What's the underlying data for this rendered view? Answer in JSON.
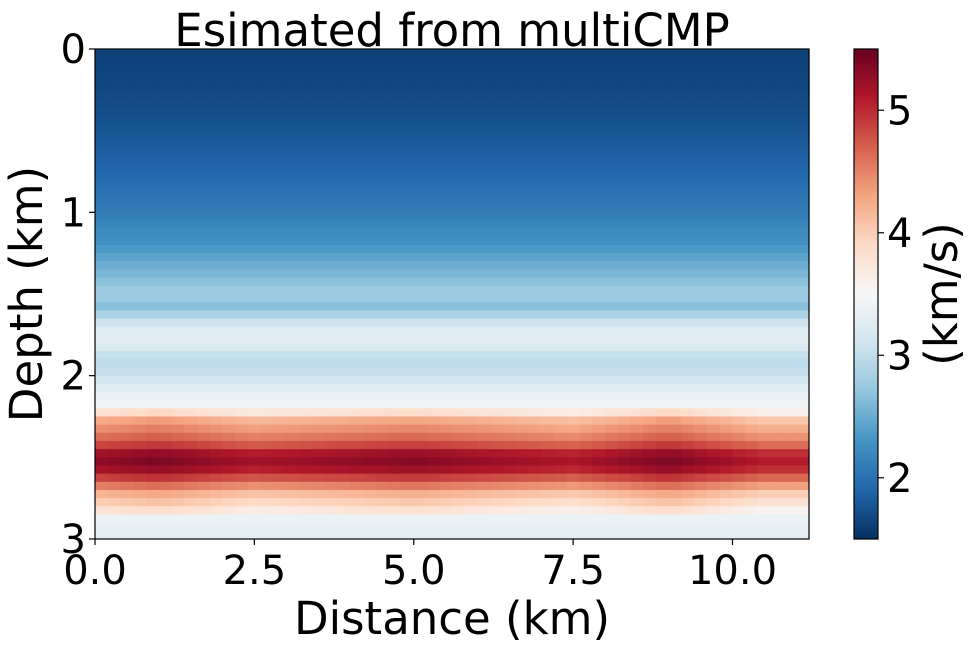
{
  "chart_data": {
    "type": "heatmap",
    "title": "Esimated from multiCMP",
    "xlabel": "Distance (km)",
    "ylabel": "Depth (km)",
    "xlim": [
      0,
      11.2
    ],
    "ylim": [
      3,
      0
    ],
    "xticks": [
      0.0,
      2.5,
      5.0,
      7.5,
      10.0
    ],
    "xtick_labels": [
      "0.0",
      "2.5",
      "5.0",
      "7.5",
      "10.0"
    ],
    "yticks": [
      0,
      1,
      2,
      3
    ],
    "ytick_labels": [
      "0",
      "1",
      "2",
      "3"
    ],
    "colorbar": {
      "label": "(km/s)",
      "range": [
        1.5,
        5.5
      ],
      "ticks": [
        2,
        3,
        4,
        5
      ],
      "tick_labels": [
        "2",
        "3",
        "4",
        "5"
      ],
      "colormap": "RdBu_r"
    },
    "grid": false,
    "cell_size_km": {
      "dx": 0.2,
      "dz": 0.05
    },
    "velocity_profile_km_s": [
      {
        "depth": 0.0,
        "v": 1.62
      },
      {
        "depth": 0.2,
        "v": 1.66
      },
      {
        "depth": 0.4,
        "v": 1.72
      },
      {
        "depth": 0.6,
        "v": 1.82
      },
      {
        "depth": 0.8,
        "v": 1.95
      },
      {
        "depth": 1.0,
        "v": 2.1
      },
      {
        "depth": 1.2,
        "v": 2.3
      },
      {
        "depth": 1.35,
        "v": 2.55
      },
      {
        "depth": 1.5,
        "v": 2.8
      },
      {
        "depth": 1.58,
        "v": 2.65
      },
      {
        "depth": 1.7,
        "v": 3.2
      },
      {
        "depth": 1.8,
        "v": 3.3
      },
      {
        "depth": 1.9,
        "v": 2.95
      },
      {
        "depth": 2.0,
        "v": 3.05
      },
      {
        "depth": 2.1,
        "v": 3.3
      },
      {
        "depth": 2.2,
        "v": 3.5
      },
      {
        "depth": 2.28,
        "v": 4.2
      },
      {
        "depth": 2.35,
        "v": 4.4
      },
      {
        "depth": 2.42,
        "v": 4.7
      },
      {
        "depth": 2.5,
        "v": 5.25
      },
      {
        "depth": 2.58,
        "v": 5.05
      },
      {
        "depth": 2.65,
        "v": 4.6
      },
      {
        "depth": 2.72,
        "v": 4.1
      },
      {
        "depth": 2.8,
        "v": 3.8
      },
      {
        "depth": 2.88,
        "v": 3.35
      },
      {
        "depth": 2.95,
        "v": 3.3
      },
      {
        "depth": 3.0,
        "v": 3.3
      }
    ],
    "lateral_adjustment_km_s": [
      {
        "x": 0.0,
        "dv": 0.1
      },
      {
        "x": 1.0,
        "dv": 0.2
      },
      {
        "x": 2.5,
        "dv": 0.0
      },
      {
        "x": 5.0,
        "dv": 0.15
      },
      {
        "x": 7.5,
        "dv": -0.05
      },
      {
        "x": 9.0,
        "dv": 0.2
      },
      {
        "x": 10.5,
        "dv": -0.1
      },
      {
        "x": 11.2,
        "dv": -0.1
      }
    ]
  }
}
